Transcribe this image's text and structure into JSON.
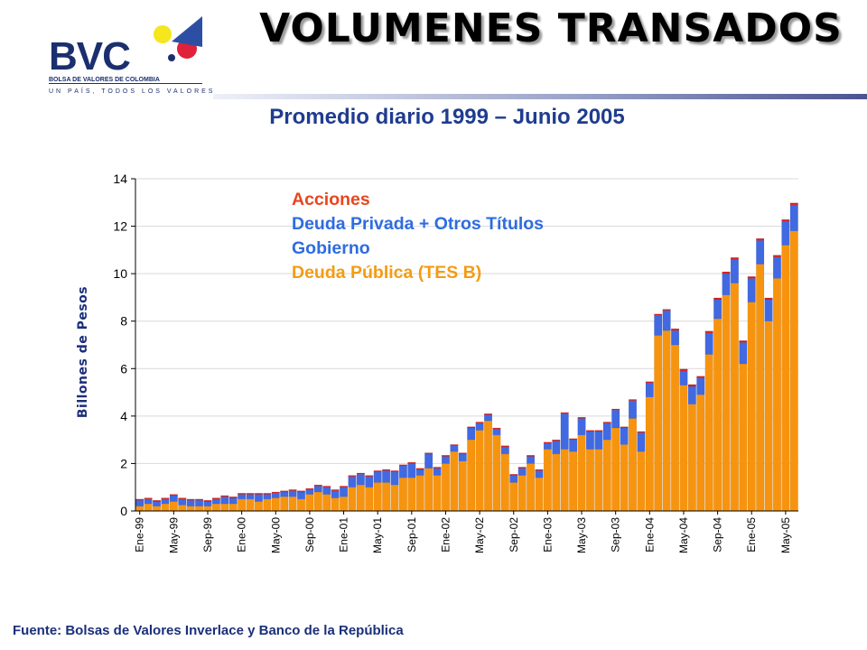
{
  "logo": {
    "brand": "BVC",
    "subtitle": "BOLSA DE VALORES DE COLOMBIA",
    "slogan": "UN PAÍS, TODOS LOS VALORES",
    "colors": {
      "navy": "#1b2f6e",
      "yellow": "#f5e61e",
      "red": "#e0213a",
      "blue": "#2c4fa3"
    }
  },
  "header": {
    "title": "VOLUMENES TRANSADOS"
  },
  "subtitle": "Promedio diario 1999 – Junio 2005",
  "source": "Fuente: Bolsas de Valores Inverlace y Banco de la República",
  "colors": {
    "acciones": "#e8451e",
    "deuda_privada": "#2e6ce0",
    "gobierno": "#2e6ce0",
    "tes": "#f39c12",
    "bar_tes": "#f7940f",
    "bar_blue": "#4169e1",
    "bar_red": "#d62020",
    "plot_bg": "#ffffff",
    "grid": "#d9d9d9"
  },
  "chart_data": {
    "type": "bar",
    "stacked": true,
    "title": "",
    "xlabel": "",
    "ylabel": "Billones de Pesos",
    "ylim": [
      0,
      14
    ],
    "yticks": [
      0,
      2,
      4,
      6,
      8,
      10,
      12,
      14
    ],
    "grid": true,
    "legend_position": "top-left",
    "legend": [
      {
        "label": "Acciones",
        "color": "#e8451e"
      },
      {
        "label": "Deuda Privada + Otros Títulos",
        "color": "#2e6ce0"
      },
      {
        "label": "Gobierno",
        "color": "#2e6ce0"
      },
      {
        "label": "Deuda Pública (TES B)",
        "color": "#f39c12"
      }
    ],
    "categories": [
      "Ene-99",
      "Feb-99",
      "Mar-99",
      "Abr-99",
      "May-99",
      "Jun-99",
      "Jul-99",
      "Ago-99",
      "Sep-99",
      "Oct-99",
      "Nov-99",
      "Dic-99",
      "Ene-00",
      "Feb-00",
      "Mar-00",
      "Abr-00",
      "May-00",
      "Jun-00",
      "Jul-00",
      "Ago-00",
      "Sep-00",
      "Oct-00",
      "Nov-00",
      "Dic-00",
      "Ene-01",
      "Feb-01",
      "Mar-01",
      "Abr-01",
      "May-01",
      "Jun-01",
      "Jul-01",
      "Ago-01",
      "Sep-01",
      "Oct-01",
      "Nov-01",
      "Dic-01",
      "Ene-02",
      "Feb-02",
      "Mar-02",
      "Abr-02",
      "May-02",
      "Jun-02",
      "Jul-02",
      "Ago-02",
      "Sep-02",
      "Oct-02",
      "Nov-02",
      "Dic-02",
      "Ene-03",
      "Feb-03",
      "Mar-03",
      "Abr-03",
      "May-03",
      "Jun-03",
      "Jul-03",
      "Ago-03",
      "Sep-03",
      "Oct-03",
      "Nov-03",
      "Dic-03",
      "Ene-04",
      "Feb-04",
      "Mar-04",
      "Abr-04",
      "May-04",
      "Jun-04",
      "Jul-04",
      "Ago-04",
      "Sep-04",
      "Oct-04",
      "Nov-04",
      "Dic-04",
      "Ene-05",
      "Feb-05",
      "Mar-05",
      "Abr-05",
      "May-05",
      "Jun-05"
    ],
    "tick_labels": [
      "Ene-99",
      "May-99",
      "Sep-99",
      "Ene-00",
      "May-00",
      "Sep-00",
      "Ene-01",
      "May-01",
      "Sep-01",
      "Ene-02",
      "May-02",
      "Sep-02",
      "Ene-03",
      "May-03",
      "Sep-03",
      "Ene-04",
      "May-04",
      "Sep-04",
      "Ene-05",
      "May-05"
    ],
    "series": [
      {
        "name": "Deuda Pública (TES B)",
        "color": "#f7940f",
        "values": [
          0.2,
          0.3,
          0.2,
          0.3,
          0.4,
          0.25,
          0.2,
          0.2,
          0.2,
          0.3,
          0.3,
          0.3,
          0.5,
          0.5,
          0.4,
          0.5,
          0.55,
          0.6,
          0.6,
          0.5,
          0.7,
          0.8,
          0.7,
          0.55,
          0.6,
          1.0,
          1.1,
          1.0,
          1.2,
          1.2,
          1.1,
          1.4,
          1.4,
          1.5,
          1.8,
          1.5,
          2.0,
          2.5,
          2.1,
          3.0,
          3.4,
          3.8,
          3.2,
          2.4,
          1.2,
          1.5,
          2.0,
          1.4,
          2.6,
          2.4,
          2.6,
          2.5,
          3.2,
          2.6,
          2.6,
          3.0,
          3.5,
          2.8,
          3.9,
          2.5,
          4.8,
          7.4,
          7.6,
          7.0,
          5.3,
          4.5,
          4.9,
          6.6,
          8.1,
          9.1,
          9.6,
          6.2,
          8.8,
          10.4,
          8.0,
          9.8,
          11.2,
          11.8
        ]
      },
      {
        "name": "Deuda Privada + Otros Títulos",
        "color": "#4169e1",
        "values": [
          0.25,
          0.2,
          0.2,
          0.2,
          0.25,
          0.25,
          0.25,
          0.25,
          0.2,
          0.2,
          0.3,
          0.25,
          0.2,
          0.2,
          0.3,
          0.2,
          0.2,
          0.2,
          0.25,
          0.3,
          0.2,
          0.25,
          0.3,
          0.3,
          0.4,
          0.45,
          0.45,
          0.45,
          0.45,
          0.5,
          0.55,
          0.5,
          0.6,
          0.25,
          0.6,
          0.3,
          0.3,
          0.25,
          0.3,
          0.5,
          0.3,
          0.25,
          0.25,
          0.3,
          0.3,
          0.3,
          0.3,
          0.3,
          0.25,
          0.55,
          1.5,
          0.5,
          0.7,
          0.75,
          0.75,
          0.7,
          0.75,
          0.7,
          0.75,
          0.8,
          0.6,
          0.85,
          0.85,
          0.6,
          0.6,
          0.75,
          0.7,
          0.9,
          0.8,
          0.9,
          1.0,
          0.9,
          1.0,
          1.0,
          0.9,
          0.9,
          1.0,
          1.1
        ]
      },
      {
        "name": "Acciones",
        "color": "#d62020",
        "values": [
          0.05,
          0.05,
          0.05,
          0.05,
          0.05,
          0.05,
          0.05,
          0.05,
          0.05,
          0.05,
          0.05,
          0.05,
          0.05,
          0.05,
          0.05,
          0.05,
          0.05,
          0.05,
          0.05,
          0.05,
          0.05,
          0.05,
          0.05,
          0.05,
          0.05,
          0.05,
          0.05,
          0.05,
          0.05,
          0.05,
          0.05,
          0.05,
          0.05,
          0.05,
          0.05,
          0.05,
          0.05,
          0.05,
          0.05,
          0.05,
          0.05,
          0.05,
          0.05,
          0.05,
          0.05,
          0.05,
          0.05,
          0.05,
          0.05,
          0.05,
          0.05,
          0.05,
          0.05,
          0.05,
          0.05,
          0.05,
          0.05,
          0.05,
          0.05,
          0.05,
          0.05,
          0.05,
          0.05,
          0.08,
          0.08,
          0.08,
          0.08,
          0.08,
          0.08,
          0.08,
          0.08,
          0.08,
          0.08,
          0.08,
          0.08,
          0.08,
          0.08,
          0.08
        ]
      }
    ]
  }
}
